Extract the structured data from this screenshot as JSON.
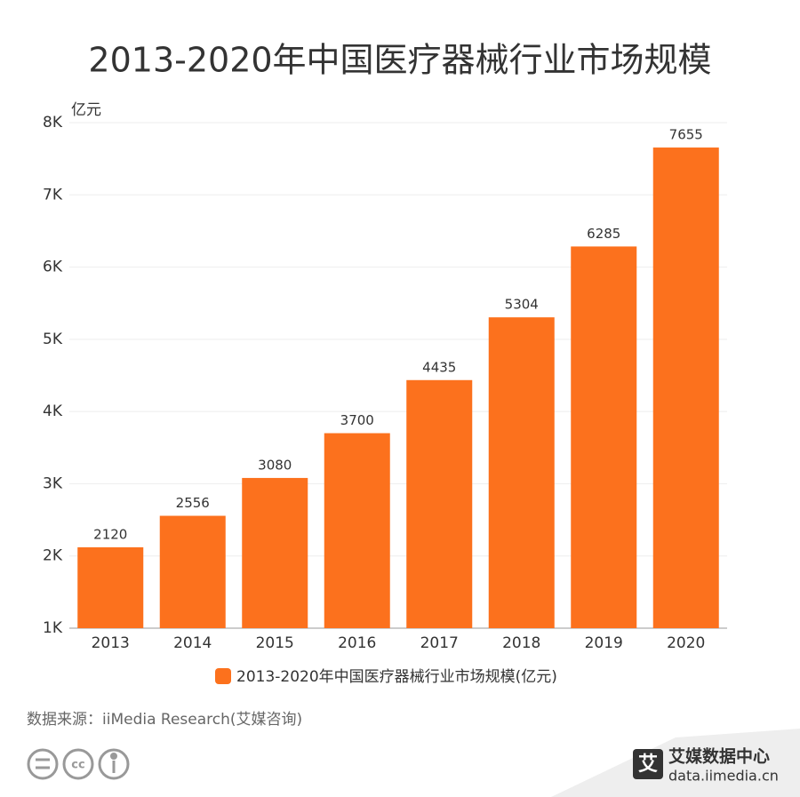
{
  "chart_data": {
    "type": "bar",
    "title": "2013-2020年中国医疗器械行业市场规模",
    "y_label": "亿元",
    "categories": [
      "2013",
      "2014",
      "2015",
      "2016",
      "2017",
      "2018",
      "2019",
      "2020"
    ],
    "series": [
      {
        "name": "2013-2020年中国医疗器械行业市场规模(亿元)",
        "color": "#fc711d",
        "values": [
          2120,
          2556,
          3080,
          3700,
          4435,
          5304,
          6285,
          7655
        ]
      }
    ],
    "ylim": [
      1000,
      8000
    ],
    "yticks": [
      {
        "value": 1000,
        "label": "1K"
      },
      {
        "value": 2000,
        "label": "2K"
      },
      {
        "value": 3000,
        "label": "3K"
      },
      {
        "value": 4000,
        "label": "4K"
      },
      {
        "value": 5000,
        "label": "5K"
      },
      {
        "value": 6000,
        "label": "6K"
      },
      {
        "value": 7000,
        "label": "7K"
      },
      {
        "value": 8000,
        "label": "8K"
      }
    ],
    "grid": true
  },
  "source": "数据来源：iiMedia Research(艾媒咨询)",
  "footer": {
    "brand": "艾媒数据中心",
    "url": "data.iimedia.cn"
  }
}
